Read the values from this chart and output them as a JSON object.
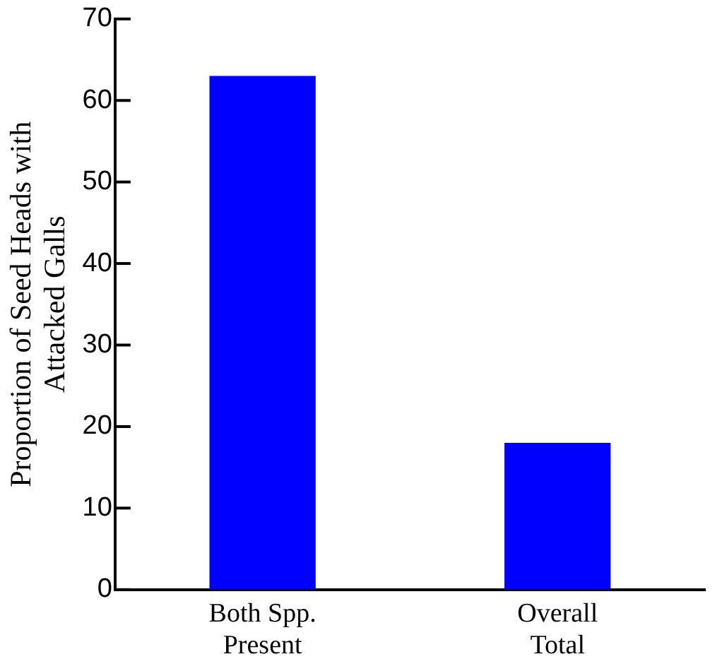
{
  "chart_data": {
    "type": "bar",
    "ylabel": "Proportion of Seed Heads with Attacked Galls",
    "categories": [
      "Both Spp. Present",
      "Overall Total"
    ],
    "values": [
      63,
      18
    ],
    "color": "#0000ff",
    "ylim": [
      0,
      70
    ],
    "yticks": [
      0,
      10,
      20,
      30,
      40,
      50,
      60,
      70
    ],
    "grid": false,
    "legend": false
  }
}
